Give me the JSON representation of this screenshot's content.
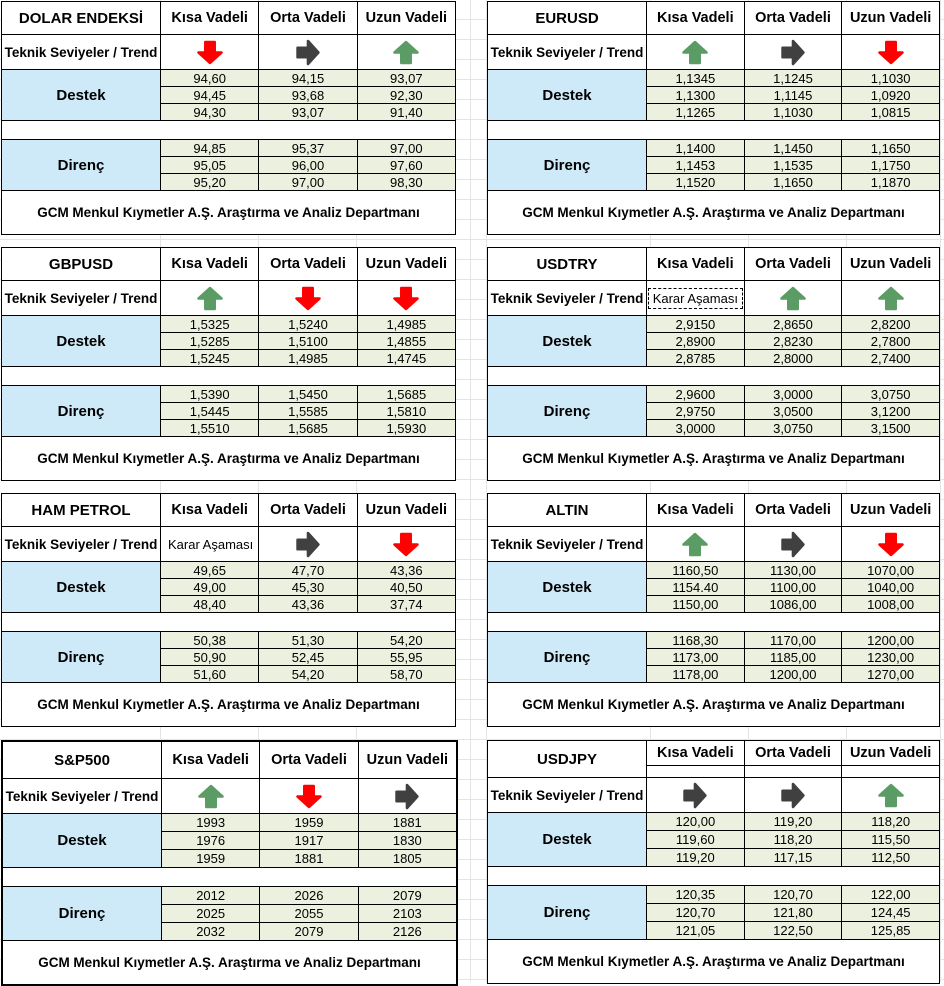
{
  "labels": {
    "trend": "Teknik Seviyeler / Trend",
    "support": "Destek",
    "resistance": "Direnç",
    "columns": [
      "Kısa Vadeli",
      "Orta Vadeli",
      "Uzun Vadeli"
    ],
    "footer": "GCM Menkul Kıymetler A.Ş. Araştırma ve Analiz Departmanı"
  },
  "colors": {
    "arrow_up": "#5B9C64",
    "arrow_down": "#FF0000",
    "arrow_flat": "#404040",
    "value_fill": "#EBF1DE",
    "label_fill": "#CEE9F7",
    "border": "#000000"
  },
  "tables": [
    {
      "id": "dolar-endeksi",
      "title": "DOLAR ENDEKSİ",
      "trends": [
        {
          "icon": "down"
        },
        {
          "icon": "flat"
        },
        {
          "icon": "up"
        }
      ],
      "support": [
        [
          "94,60",
          "94,15",
          "93,07"
        ],
        [
          "94,45",
          "93,68",
          "92,30"
        ],
        [
          "94,30",
          "93,07",
          "91,40"
        ]
      ],
      "resistance": [
        [
          "94,85",
          "95,37",
          "97,00"
        ],
        [
          "95,05",
          "96,00",
          "97,60"
        ],
        [
          "95,20",
          "97,00",
          "98,30"
        ]
      ]
    },
    {
      "id": "eurusd",
      "title": "EURUSD",
      "trends": [
        {
          "icon": "up"
        },
        {
          "icon": "flat"
        },
        {
          "icon": "down"
        }
      ],
      "support": [
        [
          "1,1345",
          "1,1245",
          "1,1030"
        ],
        [
          "1,1300",
          "1,1145",
          "1,0920"
        ],
        [
          "1,1265",
          "1,1030",
          "1,0815"
        ]
      ],
      "resistance": [
        [
          "1,1400",
          "1,1450",
          "1,1650"
        ],
        [
          "1,1453",
          "1,1535",
          "1,1750"
        ],
        [
          "1,1520",
          "1,1650",
          "1,1870"
        ]
      ]
    },
    {
      "id": "gbpusd",
      "title": "GBPUSD",
      "trends": [
        {
          "icon": "up"
        },
        {
          "icon": "down"
        },
        {
          "icon": "down"
        }
      ],
      "support": [
        [
          "1,5325",
          "1,5240",
          "1,4985"
        ],
        [
          "1,5285",
          "1,5100",
          "1,4855"
        ],
        [
          "1,5245",
          "1,4985",
          "1,4745"
        ]
      ],
      "resistance": [
        [
          "1,5390",
          "1,5450",
          "1,5685"
        ],
        [
          "1,5445",
          "1,5585",
          "1,5810"
        ],
        [
          "1,5510",
          "1,5685",
          "1,5930"
        ]
      ]
    },
    {
      "id": "usdtry",
      "title": "USDTRY",
      "trends": [
        {
          "label": "Karar Aşaması",
          "dashed": true
        },
        {
          "icon": "up"
        },
        {
          "icon": "up"
        }
      ],
      "support": [
        [
          "2,9150",
          "2,8650",
          "2,8200"
        ],
        [
          "2,8900",
          "2,8230",
          "2,7800"
        ],
        [
          "2,8785",
          "2,8000",
          "2,7400"
        ]
      ],
      "resistance": [
        [
          "2,9600",
          "3,0000",
          "3,0750"
        ],
        [
          "2,9750",
          "3,0500",
          "3,1200"
        ],
        [
          "3,0000",
          "3,0750",
          "3,1500"
        ]
      ]
    },
    {
      "id": "ham-petrol",
      "title": "HAM PETROL",
      "trends": [
        {
          "label": "Karar Aşaması",
          "dashed": false
        },
        {
          "icon": "flat"
        },
        {
          "icon": "down"
        }
      ],
      "support": [
        [
          "49,65",
          "47,70",
          "43,36"
        ],
        [
          "49,00",
          "45,30",
          "40,50"
        ],
        [
          "48,40",
          "43,36",
          "37,74"
        ]
      ],
      "resistance": [
        [
          "50,38",
          "51,30",
          "54,20"
        ],
        [
          "50,90",
          "52,45",
          "55,95"
        ],
        [
          "51,60",
          "54,20",
          "58,70"
        ]
      ]
    },
    {
      "id": "altin",
      "title": "ALTIN",
      "trends": [
        {
          "icon": "up"
        },
        {
          "icon": "flat"
        },
        {
          "icon": "down"
        }
      ],
      "support": [
        [
          "1160,50",
          "1130,00",
          "1070,00"
        ],
        [
          "1154.40",
          "1100,00",
          "1040,00"
        ],
        [
          "1150,00",
          "1086,00",
          "1008,00"
        ]
      ],
      "resistance": [
        [
          "1168,30",
          "1170,00",
          "1200,00"
        ],
        [
          "1173,00",
          "1185,00",
          "1230,00"
        ],
        [
          "1178,00",
          "1200,00",
          "1270,00"
        ]
      ]
    },
    {
      "id": "sp500",
      "title": "S&P500",
      "trends": [
        {
          "icon": "up"
        },
        {
          "icon": "down"
        },
        {
          "icon": "flat"
        }
      ],
      "support": [
        [
          "1993",
          "1959",
          "1881"
        ],
        [
          "1976",
          "1917",
          "1830"
        ],
        [
          "1959",
          "1881",
          "1805"
        ]
      ],
      "resistance": [
        [
          "2012",
          "2026",
          "2079"
        ],
        [
          "2025",
          "2055",
          "2103"
        ],
        [
          "2032",
          "2079",
          "2126"
        ]
      ]
    },
    {
      "id": "usdjpy",
      "title": "USDJPY",
      "trends": [
        {
          "icon": "flat"
        },
        {
          "icon": "flat"
        },
        {
          "icon": "up"
        }
      ],
      "support": [
        [
          "120,00",
          "119,20",
          "118,20"
        ],
        [
          "119,60",
          "118,20",
          "115,50"
        ],
        [
          "119,20",
          "117,15",
          "112,50"
        ]
      ],
      "resistance": [
        [
          "120,35",
          "120,70",
          "122,00"
        ],
        [
          "120,70",
          "121,80",
          "124,45"
        ],
        [
          "121,05",
          "122,50",
          "125,85"
        ]
      ]
    }
  ]
}
